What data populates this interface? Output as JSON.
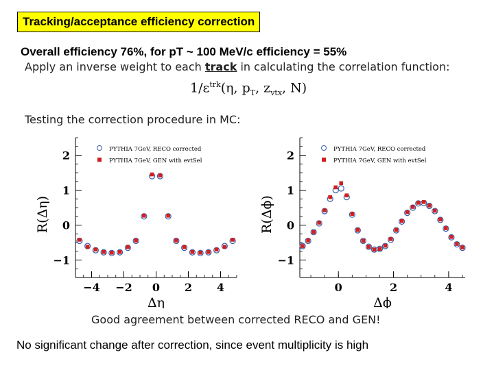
{
  "slide": {
    "title": "Tracking/acceptance efficiency correction",
    "overall": "Overall  efficiency 76%,  for pT ~ 100 MeV/c efficiency = 55%",
    "apply_pre": "Apply an inverse weight to each ",
    "apply_keyword": "track",
    "apply_post": " in calculating the correlation function:",
    "formula_pre": "1/ε",
    "formula_sup": "trk",
    "formula_mid": "(η, p",
    "formula_sub_t": "T",
    "formula_mid2": ", z",
    "formula_sub_vtx": "vtx",
    "formula_post": ", N)",
    "testing": "Testing the correction procedure in MC:",
    "good": "Good agreement between corrected RECO and GEN!",
    "bottom": "No significant change  after correction, since event  multiplicity is high"
  },
  "chart_data": [
    {
      "type": "scatter",
      "xlabel": "Δη",
      "ylabel": "R(Δη)",
      "xlim": [
        -5,
        5
      ],
      "ylim": [
        -1.5,
        2.5
      ],
      "xticks": [
        -4,
        -2,
        0,
        2,
        4
      ],
      "yticks": [
        -1,
        0,
        1,
        2
      ],
      "legend_position": "top-left",
      "x": [
        -4.75,
        -4.25,
        -3.75,
        -3.25,
        -2.75,
        -2.25,
        -1.75,
        -1.25,
        -0.75,
        -0.25,
        0.25,
        0.75,
        1.25,
        1.75,
        2.25,
        2.75,
        3.25,
        3.75,
        4.25,
        4.75
      ],
      "series": [
        {
          "name": "PYTHIA 7GeV, RECO corrected",
          "marker": "open-circle",
          "color": "#3a5fa8",
          "values": [
            -0.45,
            -0.6,
            -0.72,
            -0.78,
            -0.8,
            -0.78,
            -0.65,
            -0.45,
            0.25,
            1.4,
            1.4,
            0.25,
            -0.45,
            -0.65,
            -0.78,
            -0.8,
            -0.78,
            -0.72,
            -0.6,
            -0.45
          ]
        },
        {
          "name": "PYTHIA 7GeV, GEN with evtSel",
          "marker": "filled-square",
          "color": "#d02020",
          "values": [
            -0.42,
            -0.62,
            -0.7,
            -0.77,
            -0.79,
            -0.77,
            -0.63,
            -0.44,
            0.27,
            1.45,
            1.42,
            0.27,
            -0.44,
            -0.63,
            -0.77,
            -0.79,
            -0.77,
            -0.7,
            -0.62,
            -0.42
          ]
        }
      ]
    },
    {
      "type": "scatter",
      "xlabel": "Δϕ",
      "ylabel": "R(Δϕ)",
      "xlim": [
        -1.4,
        4.6
      ],
      "ylim": [
        -1.5,
        2.5
      ],
      "xticks": [
        0,
        2,
        4
      ],
      "yticks": [
        -1,
        0,
        1,
        2
      ],
      "legend_position": "top-left",
      "x": [
        -1.3,
        -1.1,
        -0.9,
        -0.7,
        -0.5,
        -0.3,
        -0.1,
        0.1,
        0.3,
        0.5,
        0.7,
        0.9,
        1.1,
        1.3,
        1.5,
        1.7,
        1.9,
        2.1,
        2.3,
        2.5,
        2.7,
        2.9,
        3.1,
        3.3,
        3.5,
        3.7,
        3.9,
        4.1,
        4.3,
        4.5
      ],
      "series": [
        {
          "name": "PYTHIA 7GeV, RECO corrected",
          "marker": "open-circle",
          "color": "#3a5fa8",
          "values": [
            -0.6,
            -0.45,
            -0.2,
            0.05,
            0.4,
            0.75,
            1.0,
            1.05,
            0.8,
            0.3,
            -0.15,
            -0.45,
            -0.62,
            -0.7,
            -0.68,
            -0.6,
            -0.42,
            -0.15,
            0.1,
            0.35,
            0.5,
            0.62,
            0.63,
            0.55,
            0.4,
            0.15,
            -0.1,
            -0.35,
            -0.55,
            -0.65
          ]
        },
        {
          "name": "PYTHIA 7GeV, GEN with evtSel",
          "marker": "filled-square",
          "color": "#d02020",
          "values": [
            -0.6,
            -0.44,
            -0.2,
            0.07,
            0.42,
            0.8,
            1.08,
            1.2,
            0.85,
            0.32,
            -0.14,
            -0.45,
            -0.62,
            -0.7,
            -0.68,
            -0.59,
            -0.4,
            -0.14,
            0.12,
            0.37,
            0.52,
            0.64,
            0.66,
            0.56,
            0.41,
            0.16,
            -0.09,
            -0.34,
            -0.54,
            -0.64
          ]
        }
      ]
    }
  ]
}
